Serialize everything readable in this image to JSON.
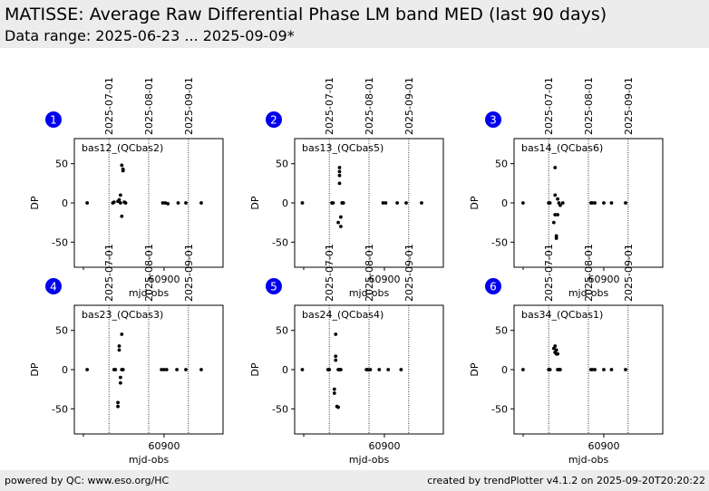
{
  "header": {
    "title": "MATISSE: Average Raw Differential Phase LM band MED (last 90 days)",
    "subtitle": "Data range: 2025-06-23 ... 2025-09-09*"
  },
  "footer": {
    "left": "powered by QC: www.eso.org/HC",
    "right": "created by trendPlotter v4.1.2 on 2025-09-20T20:20:22"
  },
  "colors": {
    "badge": "#0000ee",
    "points": "#000000",
    "header_bg": "#ececec"
  },
  "chart_data": [
    {
      "type": "scatter",
      "panel_number": "1",
      "label": "bas12_(QCbas2)",
      "xlabel": "mjd-obs",
      "ylabel": "DP",
      "ylim": [
        -82,
        82
      ],
      "xlim": [
        60830,
        60946
      ],
      "yticks": [
        50,
        0,
        -50
      ],
      "xticks": [
        60900
      ],
      "date_markers": [
        {
          "x": 60857,
          "label": "2025-07-01"
        },
        {
          "x": 60888,
          "label": "2025-08-01"
        },
        {
          "x": 60919,
          "label": "2025-09-01"
        }
      ],
      "points": {
        "x": [
          60840,
          60860,
          60861,
          60864,
          60865,
          60866,
          60866,
          60867,
          60867,
          60868,
          60868,
          60869,
          60870,
          60899,
          60901,
          60903,
          60911,
          60917,
          60929
        ],
        "y": [
          0,
          0,
          1,
          2,
          4,
          10,
          0,
          48,
          -17,
          41,
          43,
          1,
          0,
          0,
          0,
          -1,
          0,
          0,
          0
        ]
      }
    },
    {
      "type": "scatter",
      "panel_number": "2",
      "label": "bas13_(QCbas5)",
      "xlabel": "mjd-obs",
      "ylabel": "DP",
      "ylim": [
        -82,
        82
      ],
      "xlim": [
        60830,
        60946
      ],
      "yticks": [
        50,
        0,
        -50
      ],
      "xticks": [
        60900
      ],
      "date_markers": [
        {
          "x": 60857,
          "label": "2025-07-01"
        },
        {
          "x": 60888,
          "label": "2025-08-01"
        },
        {
          "x": 60919,
          "label": "2025-09-01"
        }
      ],
      "points": {
        "x": [
          60836,
          60859,
          60860,
          60864,
          60865,
          60865,
          60865,
          60865,
          60866,
          60866,
          60867,
          60867,
          60868,
          60899,
          60901,
          60910,
          60917,
          60929
        ],
        "y": [
          0,
          0,
          0,
          -25,
          25,
          35,
          40,
          45,
          -18,
          -30,
          0,
          0,
          0,
          0,
          0,
          0,
          0,
          0
        ]
      }
    },
    {
      "type": "scatter",
      "panel_number": "3",
      "label": "bas14_(QCbas6)",
      "xlabel": "mjd-obs",
      "ylabel": "DP",
      "ylim": [
        -82,
        82
      ],
      "xlim": [
        60830,
        60946
      ],
      "yticks": [
        50,
        0,
        -50
      ],
      "xticks": [
        60900
      ],
      "date_markers": [
        {
          "x": 60857,
          "label": "2025-07-01"
        },
        {
          "x": 60888,
          "label": "2025-08-01"
        },
        {
          "x": 60919,
          "label": "2025-09-01"
        }
      ],
      "points": {
        "x": [
          60837,
          60857,
          60858,
          60861,
          60862,
          60862,
          60862,
          60863,
          60863,
          60864,
          60864,
          60865,
          60866,
          60868,
          60890,
          60891,
          60893,
          60900,
          60906,
          60917
        ],
        "y": [
          0,
          0,
          0,
          -25,
          -15,
          10,
          45,
          -42,
          -45,
          5,
          -15,
          0,
          -3,
          0,
          0,
          0,
          0,
          0,
          0,
          0
        ]
      }
    },
    {
      "type": "scatter",
      "panel_number": "4",
      "label": "bas23_(QCbas3)",
      "xlabel": "mjd-obs",
      "ylabel": "DP",
      "ylim": [
        -82,
        82
      ],
      "xlim": [
        60830,
        60946
      ],
      "yticks": [
        50,
        0,
        -50
      ],
      "xticks": [
        60900
      ],
      "date_markers": [
        {
          "x": 60857,
          "label": "2025-07-01"
        },
        {
          "x": 60888,
          "label": "2025-08-01"
        },
        {
          "x": 60919,
          "label": "2025-09-01"
        }
      ],
      "points": {
        "x": [
          60840,
          60861,
          60862,
          60864,
          60864,
          60865,
          60865,
          60866,
          60866,
          60867,
          60867,
          60868,
          60898,
          60900,
          60902,
          60910,
          60917,
          60929
        ],
        "y": [
          0,
          0,
          0,
          -42,
          -47,
          25,
          30,
          -10,
          -17,
          45,
          0,
          0,
          0,
          0,
          0,
          0,
          0,
          0
        ]
      }
    },
    {
      "type": "scatter",
      "panel_number": "5",
      "label": "bas24_(QCbas4)",
      "xlabel": "mjd-obs",
      "ylabel": "DP",
      "ylim": [
        -82,
        82
      ],
      "xlim": [
        60830,
        60946
      ],
      "yticks": [
        50,
        0,
        -50
      ],
      "xticks": [
        60900
      ],
      "date_markers": [
        {
          "x": 60857,
          "label": "2025-07-01"
        },
        {
          "x": 60888,
          "label": "2025-08-01"
        },
        {
          "x": 60919,
          "label": "2025-09-01"
        }
      ],
      "points": {
        "x": [
          60836,
          60856,
          60857,
          60861,
          60861,
          60862,
          60862,
          60862,
          60863,
          60864,
          60864,
          60865,
          60866,
          60886,
          60887,
          60889,
          60896,
          60903,
          60913
        ],
        "y": [
          0,
          0,
          0,
          -25,
          -30,
          45,
          17,
          12,
          -47,
          -48,
          0,
          0,
          0,
          0,
          0,
          0,
          0,
          0,
          0
        ]
      }
    },
    {
      "type": "scatter",
      "panel_number": "6",
      "label": "bas34_(QCbas1)",
      "xlabel": "mjd-obs",
      "ylabel": "DP",
      "ylim": [
        -82,
        82
      ],
      "xlim": [
        60830,
        60946
      ],
      "yticks": [
        50,
        0,
        -50
      ],
      "xticks": [
        60900
      ],
      "date_markers": [
        {
          "x": 60857,
          "label": "2025-07-01"
        },
        {
          "x": 60888,
          "label": "2025-08-01"
        },
        {
          "x": 60919,
          "label": "2025-09-01"
        }
      ],
      "points": {
        "x": [
          60837,
          60857,
          60858,
          60861,
          60862,
          60862,
          60863,
          60863,
          60864,
          60864,
          60865,
          60866,
          60890,
          60891,
          60893,
          60900,
          60906,
          60917
        ],
        "y": [
          0,
          0,
          0,
          27,
          30,
          22,
          20,
          25,
          20,
          0,
          0,
          0,
          0,
          0,
          0,
          0,
          0,
          0
        ]
      }
    }
  ]
}
